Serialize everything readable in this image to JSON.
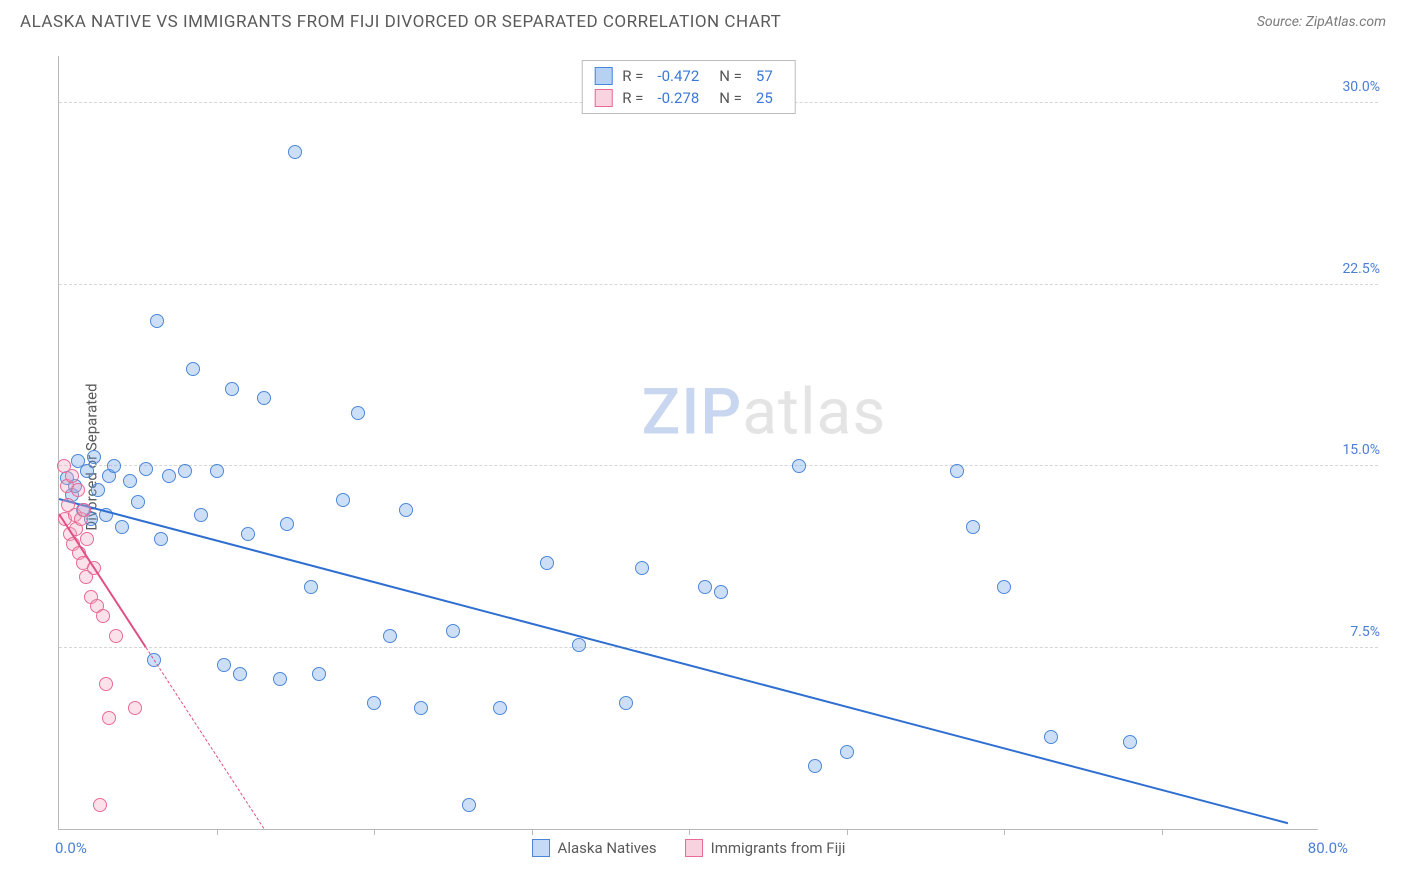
{
  "header": {
    "title": "ALASKA NATIVE VS IMMIGRANTS FROM FIJI DIVORCED OR SEPARATED CORRELATION CHART",
    "source": "Source: ZipAtlas.com"
  },
  "watermark": {
    "part1": "ZIP",
    "part2": "atlas"
  },
  "chart": {
    "type": "scatter",
    "ylabel": "Divorced or Separated",
    "background_color": "#ffffff",
    "grid_color": "#d6d6d6",
    "axis_color": "#b8b8b8",
    "tick_label_color": "#4a7fd6",
    "label_fontsize": 15,
    "tick_fontsize": 14,
    "xlim": [
      0,
      80
    ],
    "ylim": [
      0,
      32
    ],
    "yticks": [
      {
        "v": 7.5,
        "label": "7.5%"
      },
      {
        "v": 15.0,
        "label": "15.0%"
      },
      {
        "v": 22.5,
        "label": "22.5%"
      },
      {
        "v": 30.0,
        "label": "30.0%"
      }
    ],
    "xtick_positions": [
      10,
      20,
      30,
      40,
      50,
      60,
      70
    ],
    "xaxis_labels": {
      "min": "0.0%",
      "max": "80.0%"
    },
    "marker_radius": 7,
    "marker_border_width": 1.4,
    "marker_fill_opacity": 0.35,
    "series": [
      {
        "name": "Alaska Natives",
        "color": "#6fa3e8",
        "border_color": "#4a86d6",
        "R": "-0.472",
        "N": "57",
        "trend": {
          "x1": 0,
          "y1": 13.6,
          "x2": 78,
          "y2": 0.2,
          "width": 2.4,
          "color": "#2f6fd0",
          "solid_until_x": 78
        },
        "points": [
          [
            0.5,
            14.5
          ],
          [
            0.8,
            13.8
          ],
          [
            1.0,
            14.2
          ],
          [
            1.2,
            15.2
          ],
          [
            1.5,
            13.2
          ],
          [
            1.8,
            14.8
          ],
          [
            2.0,
            12.8
          ],
          [
            2.2,
            15.4
          ],
          [
            2.5,
            14.0
          ],
          [
            3.0,
            13.0
          ],
          [
            3.2,
            14.6
          ],
          [
            3.5,
            15.0
          ],
          [
            4.0,
            12.5
          ],
          [
            4.5,
            14.4
          ],
          [
            5.0,
            13.5
          ],
          [
            5.5,
            14.9
          ],
          [
            6.0,
            7.0
          ],
          [
            6.2,
            21.0
          ],
          [
            6.5,
            12.0
          ],
          [
            7.0,
            14.6
          ],
          [
            8.0,
            14.8
          ],
          [
            8.5,
            19.0
          ],
          [
            9.0,
            13.0
          ],
          [
            10.0,
            14.8
          ],
          [
            10.5,
            6.8
          ],
          [
            11.0,
            18.2
          ],
          [
            11.5,
            6.4
          ],
          [
            12.0,
            12.2
          ],
          [
            13.0,
            17.8
          ],
          [
            14.0,
            6.2
          ],
          [
            14.5,
            12.6
          ],
          [
            15.0,
            28.0
          ],
          [
            16.0,
            10.0
          ],
          [
            16.5,
            6.4
          ],
          [
            18.0,
            13.6
          ],
          [
            19.0,
            17.2
          ],
          [
            20.0,
            5.2
          ],
          [
            21.0,
            8.0
          ],
          [
            22.0,
            13.2
          ],
          [
            23.0,
            5.0
          ],
          [
            25.0,
            8.2
          ],
          [
            26.0,
            1.0
          ],
          [
            28.0,
            5.0
          ],
          [
            31.0,
            11.0
          ],
          [
            33.0,
            7.6
          ],
          [
            36.0,
            5.2
          ],
          [
            37.0,
            10.8
          ],
          [
            47.0,
            15.0
          ],
          [
            41.0,
            10.0
          ],
          [
            42.0,
            9.8
          ],
          [
            50.0,
            3.2
          ],
          [
            48.0,
            2.6
          ],
          [
            68.0,
            3.6
          ],
          [
            57.0,
            14.8
          ],
          [
            58.0,
            12.5
          ],
          [
            60.0,
            10.0
          ],
          [
            63.0,
            3.8
          ]
        ]
      },
      {
        "name": "Immigrants from Fiji",
        "color": "#f4a8bf",
        "border_color": "#e86b96",
        "R": "-0.278",
        "N": "25",
        "trend": {
          "x1": 0,
          "y1": 13.0,
          "x2": 13,
          "y2": 0.0,
          "width": 2.0,
          "color": "#e05086",
          "solid_until_x": 5.5
        },
        "points": [
          [
            0.3,
            15.0
          ],
          [
            0.4,
            12.8
          ],
          [
            0.5,
            14.2
          ],
          [
            0.6,
            13.4
          ],
          [
            0.7,
            12.2
          ],
          [
            0.8,
            14.6
          ],
          [
            0.9,
            11.8
          ],
          [
            1.0,
            13.0
          ],
          [
            1.1,
            12.4
          ],
          [
            1.2,
            14.0
          ],
          [
            1.3,
            11.4
          ],
          [
            1.4,
            12.8
          ],
          [
            1.5,
            11.0
          ],
          [
            1.6,
            13.2
          ],
          [
            1.7,
            10.4
          ],
          [
            1.8,
            12.0
          ],
          [
            2.0,
            9.6
          ],
          [
            2.2,
            10.8
          ],
          [
            2.4,
            9.2
          ],
          [
            2.8,
            8.8
          ],
          [
            3.0,
            6.0
          ],
          [
            3.2,
            4.6
          ],
          [
            3.6,
            8.0
          ],
          [
            2.6,
            1.0
          ],
          [
            4.8,
            5.0
          ]
        ]
      }
    ],
    "legend_bottom": [
      {
        "label": "Alaska Natives",
        "fill": "#c5daf5",
        "border": "#4a86d6"
      },
      {
        "label": "Immigrants from Fiji",
        "fill": "#f9d2df",
        "border": "#e86b96"
      }
    ]
  }
}
